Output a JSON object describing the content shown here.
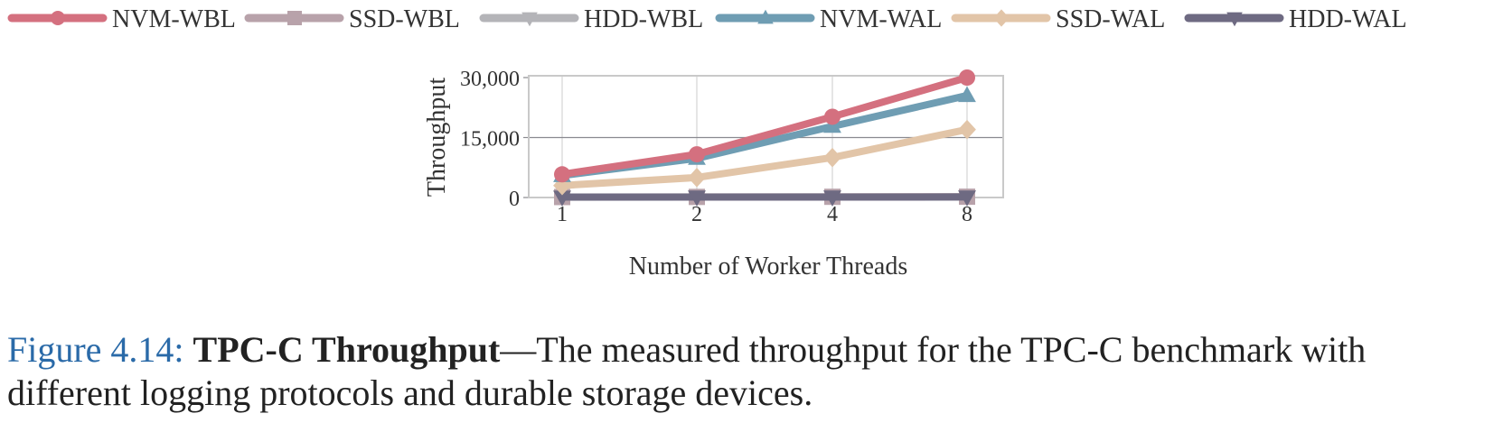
{
  "chart_data": {
    "type": "line",
    "categories": [
      "1",
      "2",
      "4",
      "8"
    ],
    "xlabel": "Number of Worker Threads",
    "ylabel": "Throughput",
    "ylim": [
      0,
      30000
    ],
    "yticks": [
      0,
      15000,
      30000
    ],
    "ytick_labels": [
      "0",
      "15,000",
      "30,000"
    ],
    "grid": true,
    "legend_position": "top",
    "series": [
      {
        "name": "NVM-WBL",
        "color": "#d4707f",
        "marker": "circle",
        "values": [
          5800,
          10800,
          20200,
          30000
        ]
      },
      {
        "name": "SSD-WBL",
        "color": "#b8a2aa",
        "marker": "square",
        "values": [
          120,
          150,
          180,
          200
        ]
      },
      {
        "name": "HDD-WBL",
        "color": "#b4b4b8",
        "marker": "triangle-down",
        "values": [
          80,
          100,
          120,
          140
        ]
      },
      {
        "name": "NVM-WAL",
        "color": "#6f9db3",
        "marker": "triangle-up",
        "values": [
          5500,
          9800,
          17800,
          25500
        ]
      },
      {
        "name": "SSD-WAL",
        "color": "#e2c5a8",
        "marker": "diamond",
        "values": [
          3000,
          5000,
          10000,
          17000
        ]
      },
      {
        "name": "HDD-WAL",
        "color": "#6e6a82",
        "marker": "triangle-down",
        "values": [
          100,
          110,
          120,
          130
        ]
      }
    ]
  },
  "caption": {
    "label": "Figure 4.14:",
    "title": "TPC-C Throughput",
    "text": "—The measured throughput for the TPC-C benchmark with different logging protocols and durable storage devices."
  }
}
